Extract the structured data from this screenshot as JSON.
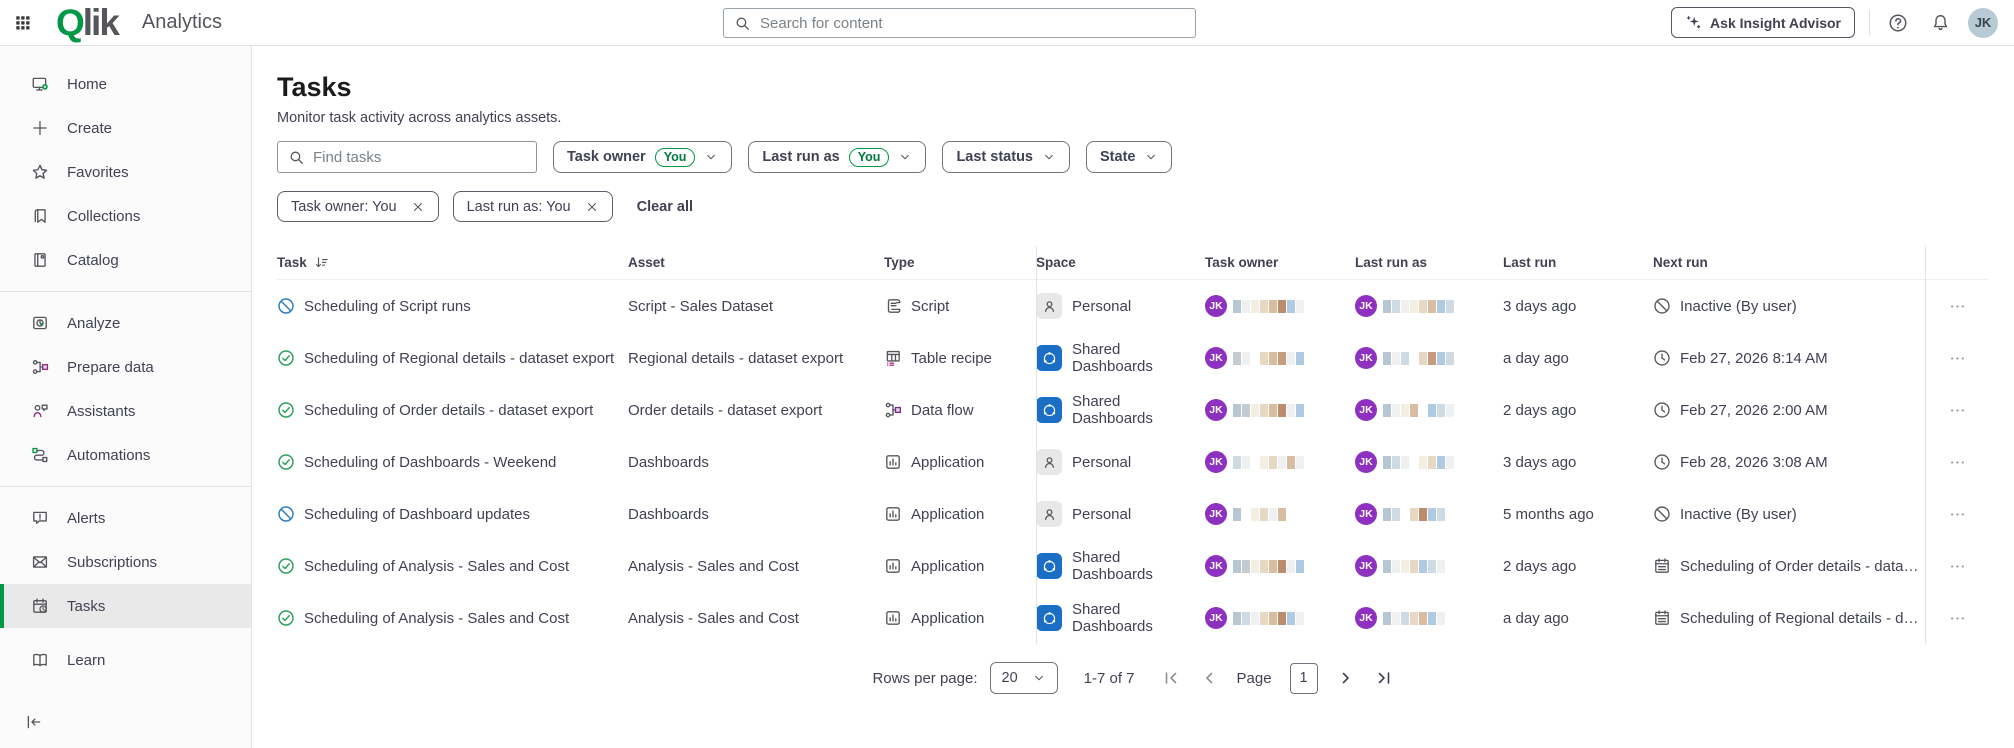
{
  "topbar": {
    "brand": "Qlik",
    "product": "Analytics",
    "search_placeholder": "Search for content",
    "ask_label": "Ask Insight Advisor",
    "avatar_initials": "JK"
  },
  "sidebar": {
    "items": [
      {
        "label": "Home",
        "icon": "home-icon"
      },
      {
        "label": "Create",
        "icon": "plus-icon"
      },
      {
        "label": "Favorites",
        "icon": "star-icon"
      },
      {
        "label": "Collections",
        "icon": "collections-icon"
      },
      {
        "label": "Catalog",
        "icon": "catalog-icon"
      },
      {
        "divider": true
      },
      {
        "label": "Analyze",
        "icon": "analyze-icon"
      },
      {
        "label": "Prepare data",
        "icon": "prepare-data-icon"
      },
      {
        "label": "Assistants",
        "icon": "assistants-icon"
      },
      {
        "label": "Automations",
        "icon": "automations-icon"
      },
      {
        "divider": true
      },
      {
        "label": "Alerts",
        "icon": "alerts-icon"
      },
      {
        "label": "Subscriptions",
        "icon": "subscriptions-icon"
      },
      {
        "label": "Tasks",
        "icon": "tasks-icon",
        "selected": true
      },
      {
        "label": "Learn",
        "icon": "learn-icon",
        "gap": true
      }
    ]
  },
  "page": {
    "title": "Tasks",
    "subtitle": "Monitor task activity across analytics assets."
  },
  "filters": {
    "search_placeholder": "Find tasks",
    "dropdowns": [
      {
        "label": "Task owner",
        "badge": "You"
      },
      {
        "label": "Last run as",
        "badge": "You"
      },
      {
        "label": "Last status"
      },
      {
        "label": "State"
      }
    ],
    "chips": [
      {
        "label": "Task owner: You"
      },
      {
        "label": "Last run as: You"
      }
    ],
    "clear_all": "Clear all"
  },
  "table": {
    "columns": [
      {
        "label": "Task",
        "sort": true
      },
      {
        "label": "Asset"
      },
      {
        "label": "Type"
      },
      {
        "label": "Space"
      },
      {
        "label": "Task owner"
      },
      {
        "label": "Last run as"
      },
      {
        "label": "Last run"
      },
      {
        "label": "Next run"
      }
    ],
    "rows": [
      {
        "status_icon": "status-inactive-icon",
        "task": "Scheduling of Script runs",
        "asset": "Script - Sales Dataset",
        "type": {
          "label": "Script",
          "icon": "script-type-icon"
        },
        "space": {
          "label": "Personal",
          "kind": "personal"
        },
        "owner": {
          "initials": "JK",
          "strip": [
            "#b7c6d3",
            "#eef0f1",
            "#f5eee3",
            "#e7d8c3",
            "#d9bda1",
            "#bb8d6d",
            "#aecbe3",
            "#eef0f1"
          ]
        },
        "run_as": {
          "initials": "JK",
          "strip": [
            "#b7c6d3",
            "#cfdbe4",
            "#eef0f1",
            "#f5eee3",
            "#e7d8c3",
            "#d9bda1",
            "#aecbe3",
            "#cfdbe4"
          ]
        },
        "last_run": "3 days ago",
        "next_run": {
          "icon": "inactive-icon",
          "label": "Inactive (By user)"
        }
      },
      {
        "status_icon": "status-ok-icon",
        "task": "Scheduling of Regional details - dataset export",
        "asset": "Regional details - dataset export",
        "type": {
          "label": "Table recipe",
          "icon": "table-recipe-icon"
        },
        "space": {
          "label": "Shared Dashboards",
          "kind": "shared"
        },
        "owner": {
          "initials": "JK",
          "strip": [
            "#c4ccd2",
            "#eef0f1",
            "",
            "#e7d8c3",
            "#d9bda1",
            "#c79b7d",
            "#eef0f1",
            "#aecbe3"
          ]
        },
        "run_as": {
          "initials": "JK",
          "strip": [
            "#b7c6d3",
            "#eef0f1",
            "#cfdbe4",
            "",
            "#e7d8c3",
            "#c79b7d",
            "#aecbe3",
            "#cfdbe4"
          ]
        },
        "last_run": "a day ago",
        "next_run": {
          "icon": "clock-icon",
          "label": "Feb 27, 2026 8:14 AM"
        }
      },
      {
        "status_icon": "status-ok-icon",
        "task": "Scheduling of Order details - dataset export",
        "asset": "Order details - dataset export",
        "type": {
          "label": "Data flow",
          "icon": "data-flow-icon"
        },
        "space": {
          "label": "Shared Dashboards",
          "kind": "shared"
        },
        "owner": {
          "initials": "JK",
          "strip": [
            "#b7c6d3",
            "#c4ccd2",
            "#f5eee3",
            "#e7d8c3",
            "#d9bda1",
            "#bb8d6d",
            "#eef0f1",
            "#aecbe3"
          ]
        },
        "run_as": {
          "initials": "JK",
          "strip": [
            "#b7c6d3",
            "#eef0f1",
            "#f5eee3",
            "#d9bda1",
            "",
            "#aecbe3",
            "#cfdbe4",
            "#eef0f1"
          ]
        },
        "last_run": "2 days ago",
        "next_run": {
          "icon": "clock-icon",
          "label": "Feb 27, 2026 2:00 AM"
        }
      },
      {
        "status_icon": "status-ok-icon",
        "task": "Scheduling of Dashboards - Weekend",
        "asset": "Dashboards",
        "type": {
          "label": "Application",
          "icon": "application-icon"
        },
        "space": {
          "label": "Personal",
          "kind": "personal"
        },
        "owner": {
          "initials": "JK",
          "strip": [
            "#cfdbe4",
            "#eef0f1",
            "",
            "#f5eee3",
            "#e7d8c3",
            "#eef0f1",
            "#d9bda1",
            "#eef0f1"
          ]
        },
        "run_as": {
          "initials": "JK",
          "strip": [
            "#b7c6d3",
            "#cfdbe4",
            "#eef0f1",
            "",
            "#f5eee3",
            "#e7d8c3",
            "#aecbe3",
            "#eef0f1"
          ]
        },
        "last_run": "3 days ago",
        "next_run": {
          "icon": "clock-icon",
          "label": "Feb 28, 2026 3:08 AM"
        }
      },
      {
        "status_icon": "status-inactive-icon",
        "task": "Scheduling of Dashboard updates",
        "asset": "Dashboards",
        "type": {
          "label": "Application",
          "icon": "application-icon"
        },
        "space": {
          "label": "Personal",
          "kind": "personal"
        },
        "owner": {
          "initials": "JK",
          "strip": [
            "#b7c6d3",
            "",
            "#f5eee3",
            "#e7d8c3",
            "#eef0f1",
            "#d9bda1",
            "",
            ""
          ]
        },
        "run_as": {
          "initials": "JK",
          "strip": [
            "#b7c6d3",
            "#cfdbe4",
            "",
            "#e7d8c3",
            "#bb8d6d",
            "#aecbe3",
            "#cfdbe4",
            ""
          ]
        },
        "last_run": "5 months ago",
        "next_run": {
          "icon": "inactive-icon",
          "label": "Inactive (By user)"
        }
      },
      {
        "status_icon": "status-ok-icon",
        "task": "Scheduling of Analysis - Sales and Cost",
        "asset": "Analysis - Sales and Cost",
        "type": {
          "label": "Application",
          "icon": "application-icon"
        },
        "space": {
          "label": "Shared Dashboards",
          "kind": "shared"
        },
        "owner": {
          "initials": "JK",
          "strip": [
            "#b7c6d3",
            "#c4ccd2",
            "#f5eee3",
            "#e7d8c3",
            "#d9bda1",
            "#bb8d6d",
            "#eef0f1",
            "#aecbe3"
          ]
        },
        "run_as": {
          "initials": "JK",
          "strip": [
            "#b7c6d3",
            "#eef0f1",
            "#f5eee3",
            "#e7d8c3",
            "#aecbe3",
            "#cfdbe4",
            "#eef0f1",
            ""
          ]
        },
        "last_run": "2 days ago",
        "next_run": {
          "icon": "chained-task-icon",
          "label": "Scheduling of Order details - dataset export"
        }
      },
      {
        "status_icon": "status-ok-icon",
        "task": "Scheduling of Analysis - Sales and Cost",
        "asset": "Analysis - Sales and Cost",
        "type": {
          "label": "Application",
          "icon": "application-icon"
        },
        "space": {
          "label": "Shared Dashboards",
          "kind": "shared"
        },
        "owner": {
          "initials": "JK",
          "strip": [
            "#b7c6d3",
            "#cfdbe4",
            "#eef0f1",
            "#e7d8c3",
            "#d9bda1",
            "#bb8d6d",
            "#aecbe3",
            "#eef0f1"
          ]
        },
        "run_as": {
          "initials": "JK",
          "strip": [
            "#b7c6d3",
            "#eef0f1",
            "#cfdbe4",
            "#e7d8c3",
            "#d9bda1",
            "#aecbe3",
            "#eef0f1",
            ""
          ]
        },
        "last_run": "a day ago",
        "next_run": {
          "icon": "chained-task-icon",
          "label": "Scheduling of Regional details - dataset e..."
        }
      }
    ]
  },
  "pagination": {
    "rows_label": "Rows per page:",
    "rows_value": "20",
    "range": "1-7 of 7",
    "page_label": "Page",
    "page_value": "1"
  },
  "colors": {
    "accent_green": "#009845",
    "shared_space_blue": "#1a6ec5",
    "avatar_purple": "#8e30c0",
    "status_ok_green": "#2f9e5f",
    "status_inactive_blue": "#2e7dbe"
  }
}
